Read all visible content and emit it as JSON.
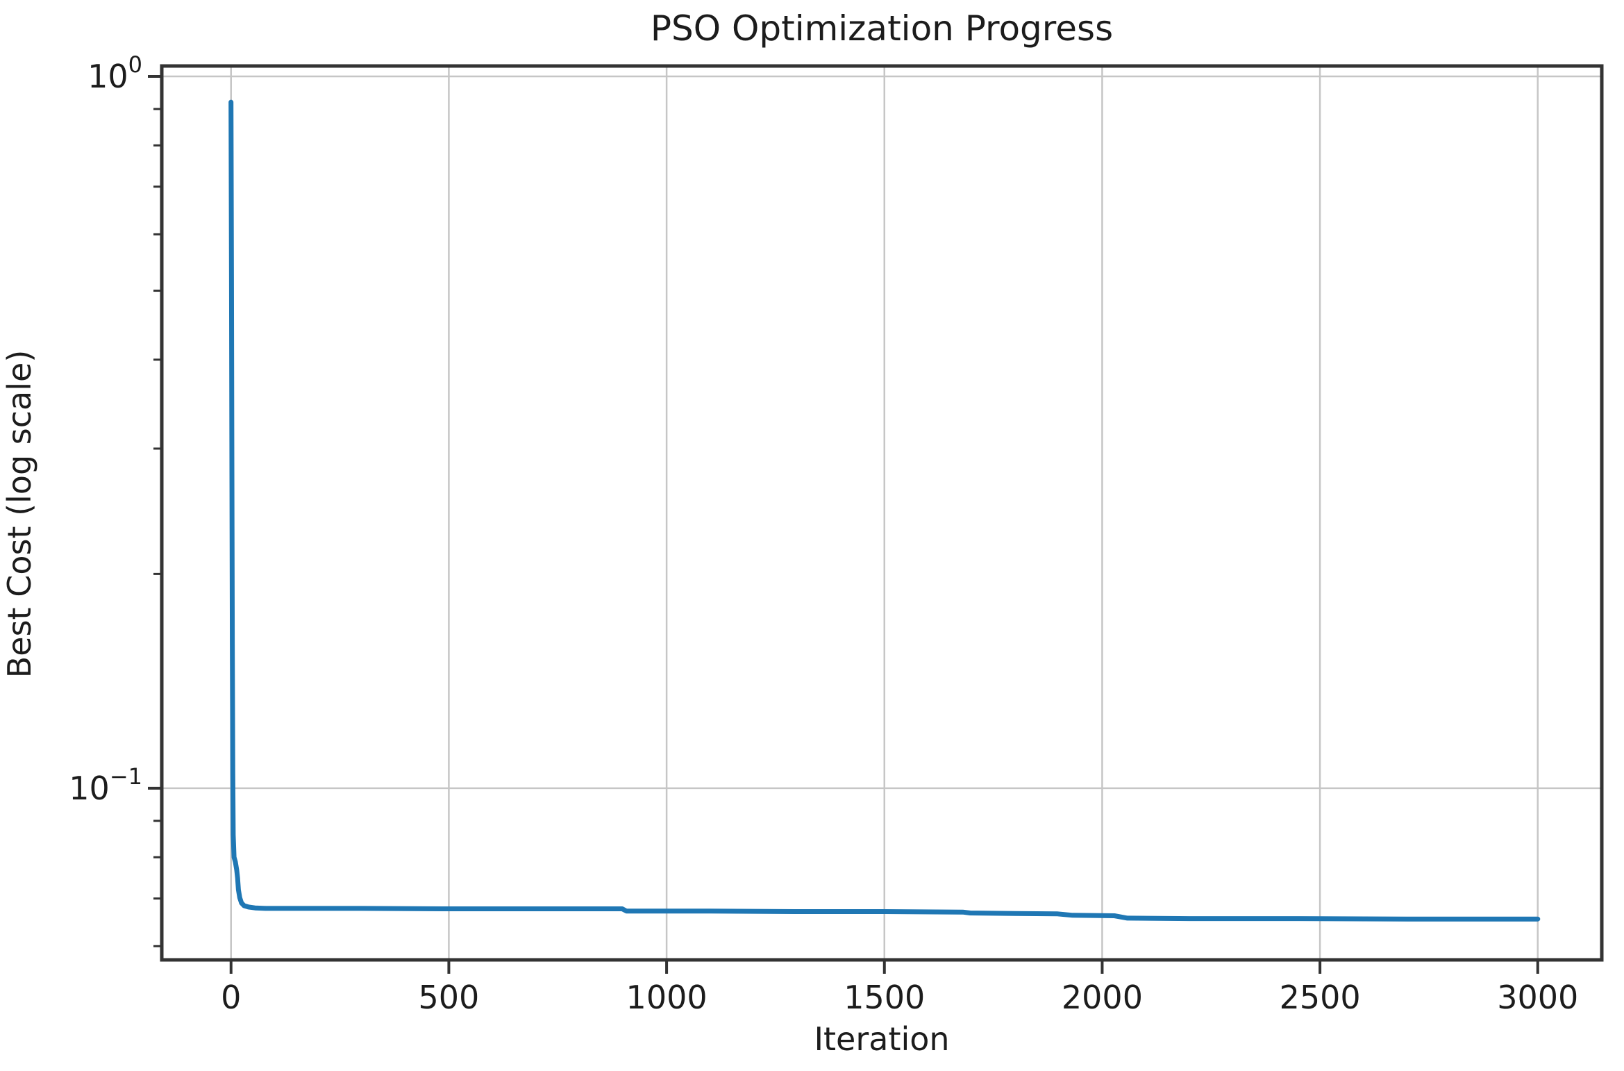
{
  "colors": {
    "line": "#1f77b4",
    "grid": "#c6c6c6",
    "spine": "#333333",
    "tick": "#333333",
    "text": "#1c1c1c",
    "background": "#ffffff"
  },
  "chart_data": {
    "type": "line",
    "title": "PSO Optimization Progress",
    "xlabel": "Iteration",
    "ylabel": "Best Cost (log scale)",
    "xscale": "linear",
    "yscale": "log",
    "grid": "major",
    "legend_position": "none",
    "xlim": [
      -159,
      3147
    ],
    "ylim": [
      0.0574,
      1.0343
    ],
    "x_ticks": [
      {
        "value": 0,
        "label": "0"
      },
      {
        "value": 500,
        "label": "500"
      },
      {
        "value": 1000,
        "label": "1000"
      },
      {
        "value": 1500,
        "label": "1500"
      },
      {
        "value": 2000,
        "label": "2000"
      },
      {
        "value": 2500,
        "label": "2500"
      },
      {
        "value": 3000,
        "label": "3000"
      }
    ],
    "y_major_ticks": [
      {
        "value": 1.0,
        "base": "10",
        "exponent": "0"
      },
      {
        "value": 0.1,
        "base": "10",
        "exponent": "−1"
      }
    ],
    "y_minor_tick_values": [
      0.9,
      0.8,
      0.7,
      0.6,
      0.5,
      0.4,
      0.3,
      0.2,
      0.09,
      0.08,
      0.07,
      0.06
    ],
    "series": [
      {
        "name": "best_cost",
        "color": "#1f77b4",
        "line_width": 7,
        "points": [
          [
            0,
            0.92
          ],
          [
            1,
            0.52
          ],
          [
            2,
            0.28
          ],
          [
            3,
            0.16
          ],
          [
            4,
            0.105
          ],
          [
            5,
            0.086
          ],
          [
            7,
            0.08
          ],
          [
            10,
            0.0788
          ],
          [
            13,
            0.0768
          ],
          [
            15,
            0.0748
          ],
          [
            17,
            0.072
          ],
          [
            20,
            0.0702
          ],
          [
            24,
            0.069
          ],
          [
            30,
            0.0684
          ],
          [
            40,
            0.0681
          ],
          [
            55,
            0.0679
          ],
          [
            80,
            0.0678
          ],
          [
            150,
            0.0678
          ],
          [
            300,
            0.0678
          ],
          [
            500,
            0.0677
          ],
          [
            700,
            0.0677
          ],
          [
            898,
            0.0677
          ],
          [
            908,
            0.0672
          ],
          [
            1100,
            0.0672
          ],
          [
            1300,
            0.0671
          ],
          [
            1500,
            0.0671
          ],
          [
            1680,
            0.067
          ],
          [
            1697,
            0.0668
          ],
          [
            1800,
            0.0667
          ],
          [
            1898,
            0.0666
          ],
          [
            1932,
            0.0663
          ],
          [
            2028,
            0.0662
          ],
          [
            2058,
            0.0657
          ],
          [
            2200,
            0.0656
          ],
          [
            2450,
            0.0656
          ],
          [
            2700,
            0.0655
          ],
          [
            3000,
            0.0655
          ]
        ]
      }
    ]
  }
}
